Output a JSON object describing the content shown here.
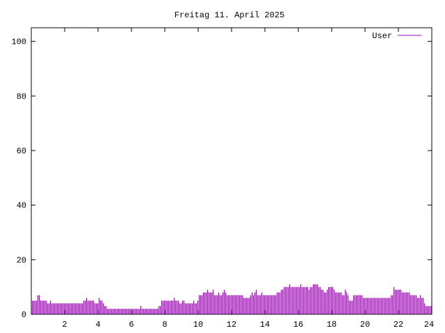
{
  "chart_data": {
    "type": "bar",
    "title": "Freitag 11. April 2025",
    "xlabel": "",
    "ylabel": "",
    "xlim": [
      0,
      24
    ],
    "ylim": [
      0,
      105
    ],
    "x_ticks": [
      2,
      4,
      6,
      8,
      10,
      12,
      14,
      16,
      18,
      20,
      22,
      24
    ],
    "y_ticks": [
      0,
      20,
      40,
      60,
      80,
      100
    ],
    "grid": false,
    "legend_position": "top-right",
    "x_step_hours": 0.08333,
    "series": [
      {
        "name": "User",
        "color": "#9400d3",
        "values": [
          5,
          5,
          5,
          5,
          7,
          7,
          5,
          5,
          5,
          5,
          5,
          4,
          4,
          5,
          4,
          4,
          4,
          4,
          4,
          4,
          4,
          4,
          4,
          4,
          4,
          4,
          4,
          4,
          4,
          4,
          4,
          4,
          4,
          4,
          4,
          4,
          4,
          5,
          5,
          6,
          5,
          5,
          5,
          5,
          5,
          4,
          4,
          4,
          6,
          5,
          5,
          4,
          3,
          3,
          2,
          2,
          2,
          2,
          2,
          2,
          2,
          2,
          2,
          2,
          2,
          2,
          2,
          2,
          2,
          2,
          2,
          2,
          2,
          2,
          2,
          2,
          2,
          2,
          3,
          2,
          2,
          2,
          2,
          2,
          2,
          2,
          2,
          2,
          2,
          2,
          2,
          3,
          3,
          5,
          5,
          5,
          5,
          5,
          5,
          5,
          5,
          5,
          6,
          5,
          5,
          5,
          4,
          4,
          5,
          5,
          4,
          4,
          4,
          4,
          4,
          4,
          5,
          4,
          4,
          5,
          7,
          7,
          7,
          8,
          8,
          8,
          9,
          8,
          8,
          8,
          9,
          7,
          7,
          7,
          8,
          7,
          7,
          8,
          9,
          8,
          7,
          7,
          7,
          7,
          7,
          7,
          7,
          7,
          7,
          7,
          7,
          7,
          6,
          6,
          6,
          6,
          6,
          7,
          8,
          7,
          8,
          9,
          7,
          7,
          7,
          8,
          7,
          7,
          7,
          7,
          7,
          7,
          7,
          7,
          7,
          7,
          8,
          8,
          8,
          9,
          9,
          10,
          10,
          10,
          10,
          11,
          10,
          10,
          10,
          10,
          10,
          10,
          10,
          11,
          10,
          10,
          10,
          10,
          10,
          9,
          10,
          10,
          11,
          11,
          11,
          11,
          10,
          10,
          9,
          9,
          8,
          8,
          9,
          10,
          10,
          10,
          10,
          9,
          8,
          8,
          8,
          8,
          8,
          7,
          7,
          9,
          8,
          7,
          5,
          5,
          5,
          7,
          7,
          7,
          7,
          7,
          7,
          7,
          6,
          6,
          6,
          6,
          6,
          6,
          6,
          6,
          6,
          6,
          6,
          6,
          6,
          6,
          6,
          6,
          6,
          6,
          6,
          6,
          7,
          7,
          10,
          9,
          9,
          9,
          9,
          9,
          8,
          8,
          8,
          8,
          8,
          8,
          7,
          7,
          7,
          7,
          7,
          6,
          6,
          7,
          6,
          6,
          4,
          3,
          3,
          3,
          3,
          3
        ]
      }
    ]
  }
}
